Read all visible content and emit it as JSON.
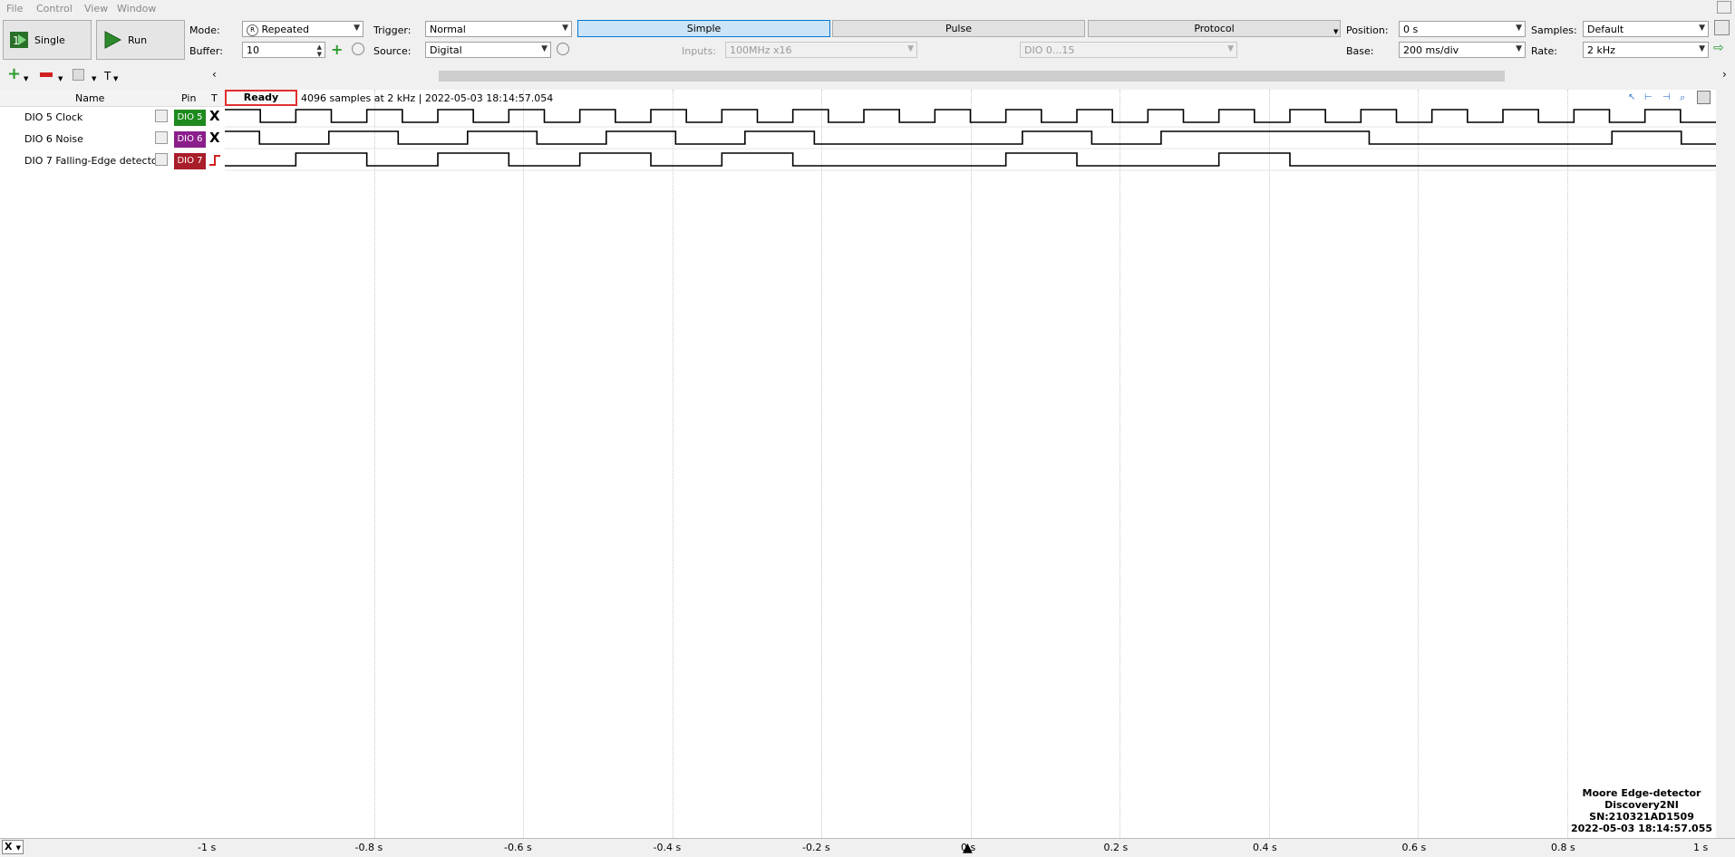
{
  "menu": [
    "File",
    "Control",
    "View",
    "Window"
  ],
  "toolbar": {
    "single_label": "Single",
    "run_label": "Run",
    "mode_label": "Mode:",
    "mode_value": "Repeated",
    "buffer_label": "Buffer:",
    "buffer_value": "10",
    "trigger_label": "Trigger:",
    "trigger_value": "Normal",
    "source_label": "Source:",
    "source_value": "Digital",
    "tabs": [
      "Simple",
      "Pulse",
      "Protocol"
    ],
    "inputs_label": "Inputs:",
    "inputs_value": "100MHz x16",
    "dio_range": "DIO 0...15",
    "position_label": "Position:",
    "position_value": "0 s",
    "base_label": "Base:",
    "base_value": "200 ms/div",
    "samples_label": "Samples:",
    "samples_value": "Default",
    "rate_label": "Rate:",
    "rate_value": "2 kHz"
  },
  "list_header": {
    "name": "Name",
    "pin": "Pin",
    "t": "T"
  },
  "status": {
    "state": "Ready",
    "info": "4096 samples at 2 kHz | 2022-05-03 18:14:57.054"
  },
  "channels": [
    {
      "name": "DIO 5 Clock",
      "pin": "DIO 5",
      "trigger": "X",
      "color": "#1e8a1e",
      "waveform": [
        1,
        0,
        1,
        0,
        1,
        0,
        1,
        0,
        1,
        0,
        1,
        0,
        1,
        0,
        1,
        0,
        1,
        0,
        1,
        0,
        1,
        0,
        1,
        0,
        1,
        0,
        1,
        0,
        1,
        0,
        1,
        0,
        1,
        0,
        1,
        0,
        1,
        0,
        1,
        0,
        1,
        0
      ]
    },
    {
      "name": "DIO 6 Noise",
      "pin": "DIO 6",
      "trigger": "X",
      "color": "#8a1e8a",
      "waveform": [
        1,
        0,
        0,
        1,
        1,
        0,
        0,
        1,
        1,
        0,
        0,
        1,
        1,
        0,
        0,
        1,
        1,
        0,
        0,
        0,
        0,
        0,
        0,
        1,
        1,
        0,
        0,
        1,
        1,
        1,
        1,
        1,
        1,
        0,
        0,
        0,
        0,
        0,
        0,
        0,
        1,
        1,
        0
      ]
    },
    {
      "name": "DIO 7 Falling-Edge detector",
      "pin": "DIO 7",
      "trigger": "rising-edge",
      "color": "#a81e2a",
      "waveform": [
        0,
        0,
        1,
        1,
        0,
        0,
        1,
        1,
        0,
        0,
        1,
        1,
        0,
        0,
        1,
        1,
        0,
        0,
        0,
        0,
        0,
        0,
        1,
        1,
        0,
        0,
        0,
        0,
        1,
        1,
        0,
        0,
        0,
        0,
        0,
        0,
        0,
        0,
        0,
        0,
        0,
        0
      ]
    }
  ],
  "x_axis": [
    "-1 s",
    "-0.8 s",
    "-0.6 s",
    "-0.4 s",
    "-0.2 s",
    "0 s",
    "0.2 s",
    "0.4 s",
    "0.6 s",
    "0.8 s",
    "1 s"
  ],
  "watermark": [
    "Moore Edge-detector",
    "Discovery2NI",
    "SN:210321AD1509",
    "2022-05-03 18:14:57.055"
  ],
  "bottom_x_label": "X"
}
